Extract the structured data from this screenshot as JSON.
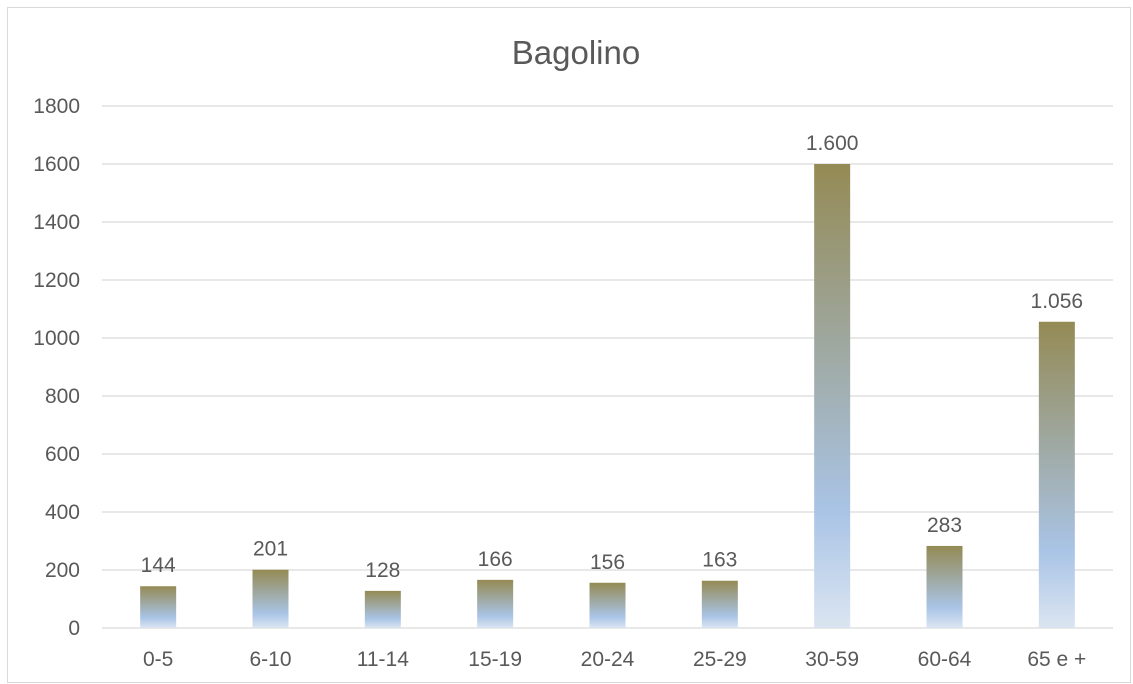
{
  "chart_data": {
    "type": "bar",
    "title": "Bagolino",
    "xlabel": "",
    "ylabel": "",
    "categories": [
      "0-5",
      "6-10",
      "11-14",
      "15-19",
      "20-24",
      "25-29",
      "30-59",
      "60-64",
      "65 e +"
    ],
    "values": [
      144,
      201,
      128,
      166,
      156,
      163,
      1600,
      283,
      1056
    ],
    "data_labels": [
      "144",
      "201",
      "128",
      "166",
      "156",
      "163",
      "1.600",
      "283",
      "1.056"
    ],
    "y_ticks": [
      "0",
      "200",
      "400",
      "600",
      "800",
      "1000",
      "1200",
      "1400",
      "1600",
      "1800"
    ],
    "ylim": [
      0,
      1800
    ],
    "grid": true,
    "legend": "none",
    "colors": {
      "bar_top": "#948a54",
      "bar_mid": "#a9c4e6",
      "bar_bottom": "#dbe5f1",
      "gridline": "#d9d9d9",
      "text": "#595959"
    }
  }
}
